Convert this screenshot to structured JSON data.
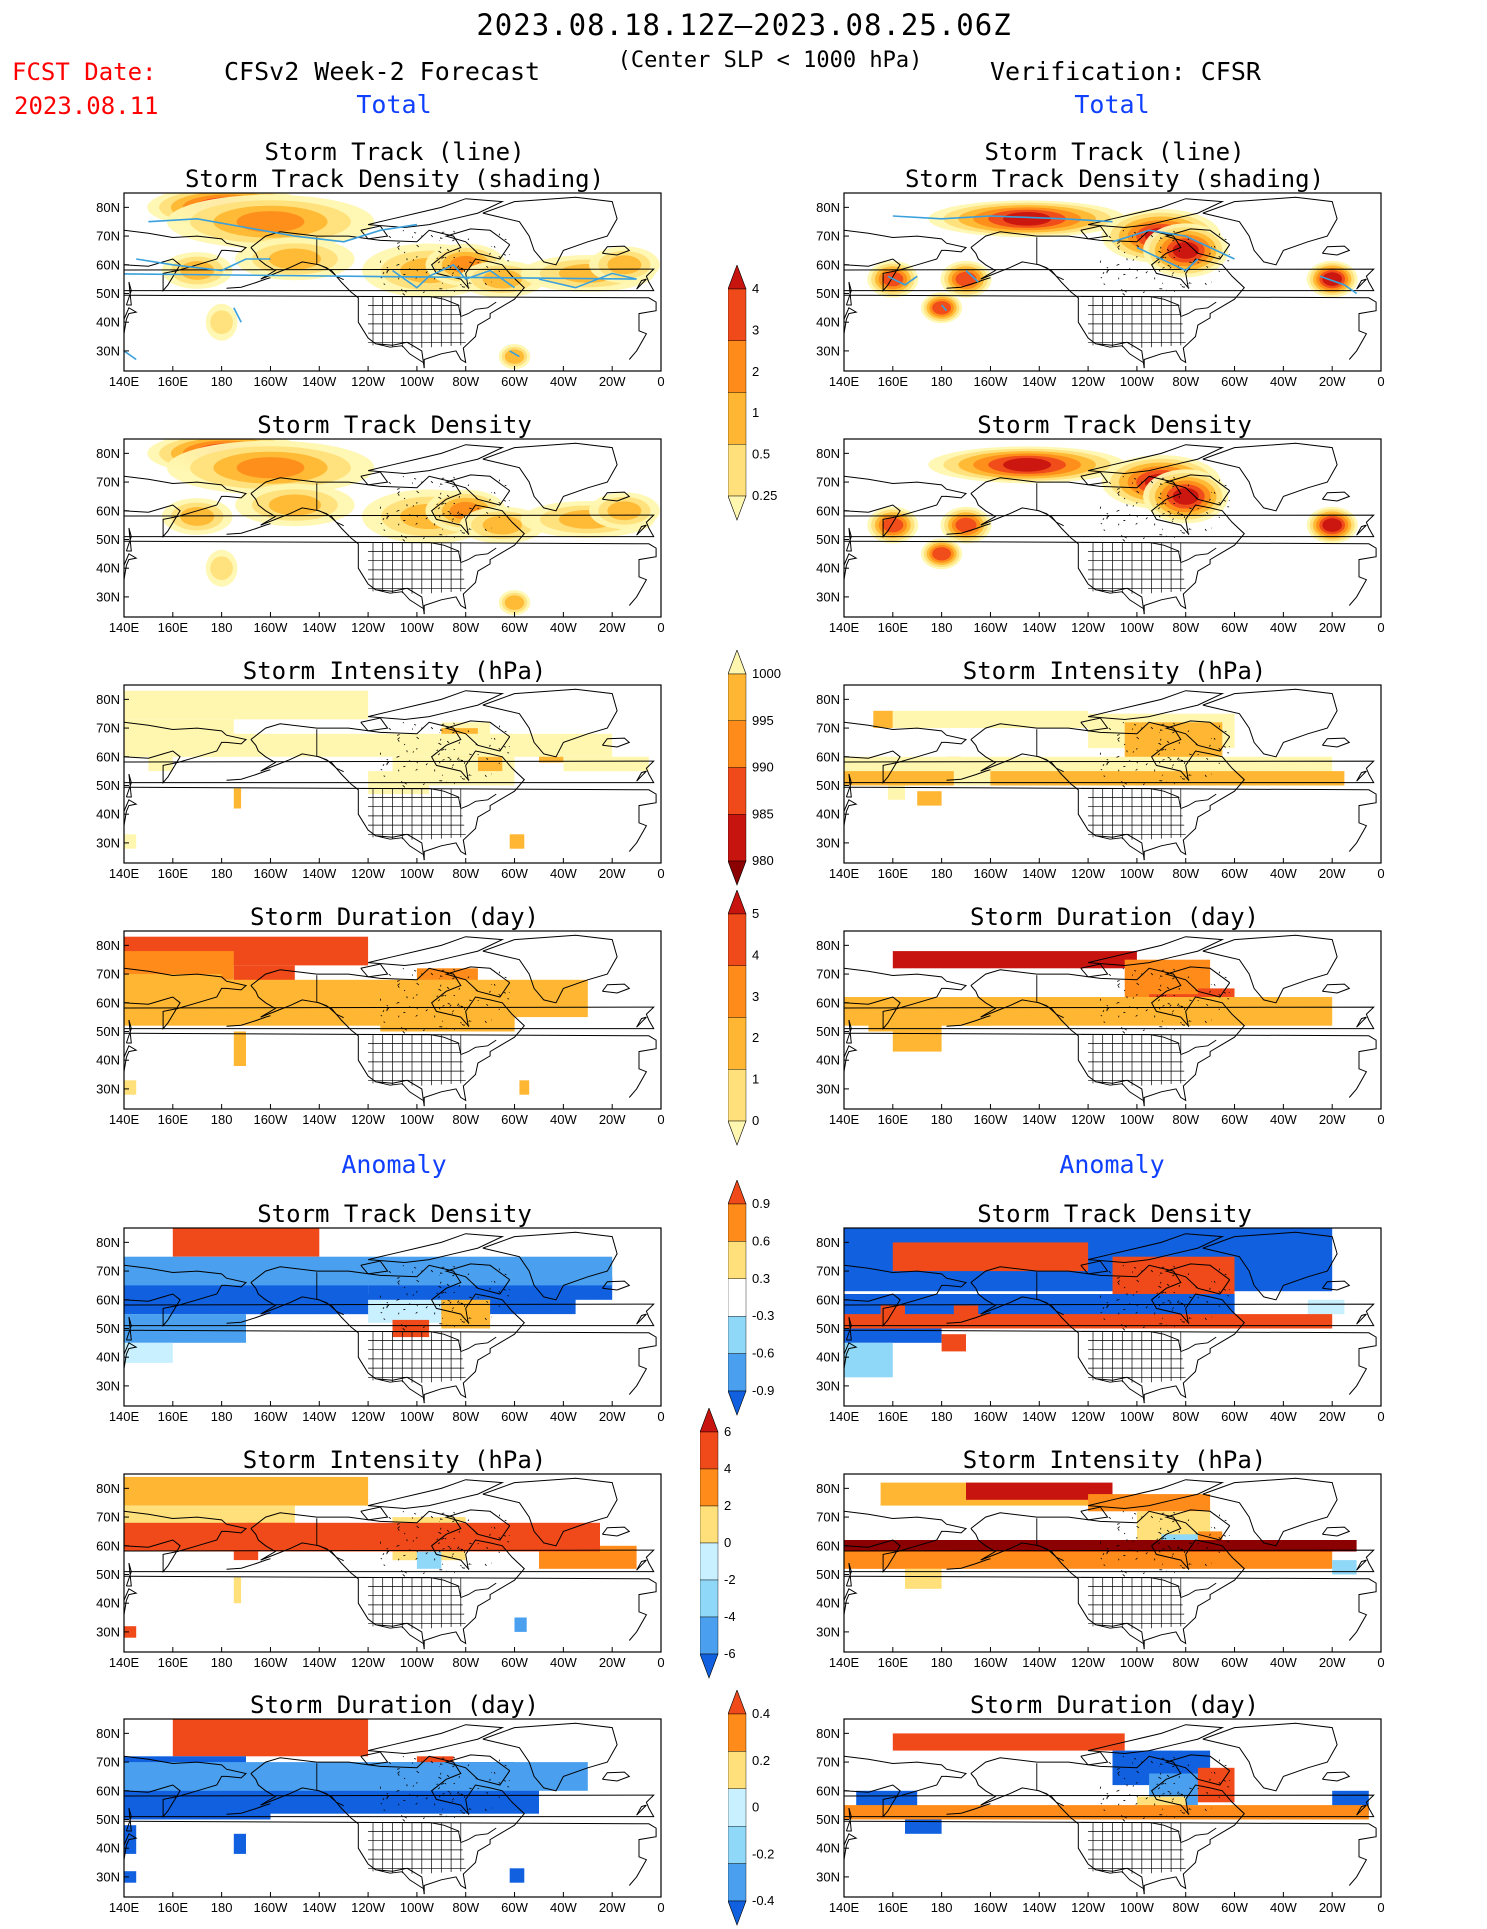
{
  "header": {
    "date_range": "2023.08.18.12Z—2023.08.25.06Z",
    "criterion": "(Center SLP < 1000 hPa)",
    "fcst_label": "FCST Date:",
    "fcst_date": "2023.08.11",
    "left_title": "CFSv2 Week-2 Forecast",
    "right_title": "Verification: CFSR"
  },
  "sections": {
    "total": "Total",
    "anomaly": "Anomaly"
  },
  "panel_titles": {
    "track_line": "Storm Track (line)",
    "track_density_shading": "Storm Track Density (shading)",
    "track_density": "Storm Track Density",
    "intensity": "Storm Intensity (hPa)",
    "duration": "Storm Duration (day)"
  },
  "axes": {
    "x_ticks": [
      "140E",
      "160E",
      "180",
      "160W",
      "140W",
      "120W",
      "100W",
      "80W",
      "60W",
      "40W",
      "20W",
      "0"
    ],
    "y_ticks": [
      "80N",
      "70N",
      "60N",
      "50N",
      "40N",
      "30N"
    ]
  },
  "colorbars": [
    {
      "id": "density_total",
      "labels": [
        "4",
        "3",
        "2",
        "1",
        "0.5",
        "0.25"
      ]
    },
    {
      "id": "intensity_total",
      "labels": [
        "1000",
        "995",
        "990",
        "985",
        "980"
      ]
    },
    {
      "id": "duration_total",
      "labels": [
        "5",
        "4",
        "3",
        "2",
        "1",
        "0"
      ]
    },
    {
      "id": "density_anom",
      "labels": [
        "0.9",
        "0.6",
        "0.3",
        "-0.3",
        "-0.6",
        "-0.9"
      ]
    },
    {
      "id": "intensity_anom",
      "labels": [
        "6",
        "4",
        "2",
        "0",
        "-2",
        "-4",
        "-6"
      ]
    },
    {
      "id": "duration_anom",
      "labels": [
        "0.4",
        "0.2",
        "0",
        "-0.2",
        "-0.4"
      ]
    }
  ],
  "colors": {
    "warm": [
      "#fff7b0",
      "#ffe07a",
      "#ffb733",
      "#ff8c1a",
      "#f04a1a",
      "#c8140f",
      "#8b0000"
    ],
    "cool": [
      "#c8f0ff",
      "#8fd8f7",
      "#4aa0ef",
      "#1060e0",
      "#0040c0"
    ],
    "track": "#3aa0dc",
    "land": "#000000"
  },
  "chart_data": {
    "type": "heatmap",
    "grid": "schematic",
    "panels": [
      {
        "name": "fcst_total_track_density",
        "blobs": [
          [
            -178,
            80,
            30,
            6,
            4
          ],
          [
            -160,
            75,
            40,
            8,
            2
          ],
          [
            -150,
            62,
            22,
            6,
            1
          ],
          [
            -95,
            58,
            25,
            8,
            1
          ],
          [
            -80,
            60,
            14,
            6,
            2.5
          ],
          [
            -65,
            55,
            15,
            5,
            1
          ],
          [
            -30,
            57,
            25,
            5,
            1
          ],
          [
            -15,
            60,
            12,
            5,
            1.5
          ],
          [
            170,
            58,
            12,
            5,
            1
          ],
          [
            -60,
            28,
            4,
            3,
            1
          ],
          [
            -180,
            40,
            4,
            5,
            0.5
          ]
        ]
      },
      {
        "name": "cfsr_total_track_density",
        "blobs": [
          [
            -145,
            76,
            38,
            5,
            4
          ],
          [
            -90,
            70,
            22,
            8,
            4
          ],
          [
            -80,
            65,
            15,
            8,
            4
          ],
          [
            -20,
            55,
            8,
            5,
            4
          ],
          [
            160,
            55,
            8,
            5,
            3
          ],
          [
            -170,
            55,
            8,
            5,
            3
          ],
          [
            -180,
            45,
            6,
            4,
            3
          ]
        ]
      }
    ]
  }
}
